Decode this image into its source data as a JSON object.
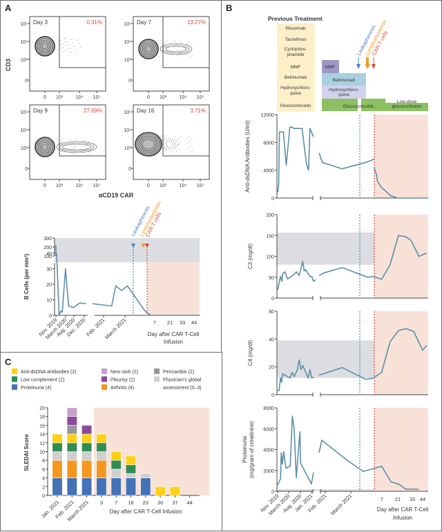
{
  "colors": {
    "line": "#5b8ea8",
    "normal_range": "#dcdde2",
    "post_infusion": "#f8e2d8",
    "leukapheresis": "#4a7cc7",
    "lymphodepletion": "#f39c2b",
    "car_t": "#d9453a",
    "pct_text": "#d9453a",
    "prev_treatment_bg": "#fdefc8",
    "mmf": "#9e98c6",
    "belimumab": "#a9cfe0",
    "hcq": "#d3d3ee",
    "glucocorticoids": "#8cc063"
  },
  "panels": {
    "a": {
      "label": "A"
    },
    "b": {
      "label": "B"
    },
    "c": {
      "label": "C"
    }
  },
  "events": {
    "leukapheresis": "Leukapheresis",
    "lymphodepletion": "Lymphodepletion",
    "car_t": "CAR T cells"
  },
  "chart_data": [
    {
      "id": "flow-cytometry",
      "type": "scatter",
      "xlabel": "αCD19 CAR",
      "ylabel": "CD3",
      "x_ticks": [
        "0",
        "10³",
        "10⁴",
        "10⁵"
      ],
      "y_ticks": [
        "0",
        "10³",
        "10⁴",
        "10⁵"
      ],
      "plots": [
        {
          "title": "Day 3",
          "percent": "0.31%"
        },
        {
          "title": "Day 7",
          "percent": "13.27%"
        },
        {
          "title": "Day 9",
          "percent": "27.69%"
        },
        {
          "title": "Day 16",
          "percent": "3.71%"
        }
      ]
    },
    {
      "id": "b-cells",
      "type": "line",
      "ylabel": "B Cells (per mm³)",
      "xlabel": "Day after CAR T-Cell Infusion",
      "upper_ticks": [
        "100",
        "200",
        "300"
      ],
      "lower_ticks": [
        "0",
        "10",
        "20",
        "30",
        "40"
      ],
      "x_ticks_dates": [
        "Nov. 2019",
        "March 2020",
        "Aug. 2020",
        "Dec. 2020",
        "Feb. 2021",
        "March 2021"
      ],
      "x_ticks_days": [
        "7",
        "21",
        "33",
        "44"
      ],
      "segment1": [
        [
          0,
          220
        ],
        [
          0.02,
          40
        ],
        [
          0.1,
          0
        ],
        [
          0.16,
          3
        ],
        [
          0.2,
          2
        ],
        [
          0.3,
          30
        ],
        [
          0.4,
          6
        ],
        [
          0.55,
          5
        ],
        [
          0.75,
          8
        ],
        [
          0.95,
          7.5
        ]
      ],
      "segment2": [
        [
          0,
          7.5
        ],
        [
          0.33,
          6
        ],
        [
          0.4,
          19
        ],
        [
          0.5,
          16
        ],
        [
          0.6,
          19
        ],
        [
          0.9,
          3
        ],
        [
          1.0,
          0
        ]
      ],
      "segment3": [
        [
          0,
          0
        ],
        [
          0.1,
          0
        ],
        [
          1,
          0
        ]
      ],
      "normal_range": [
        100,
        300
      ]
    },
    {
      "id": "anti-dsdna",
      "type": "line",
      "ylabel": "Anti-dsDNA Antibodies (U/ml)",
      "y_ticks": [
        "0",
        "4000",
        "8000",
        "12000"
      ],
      "ylim": [
        0,
        12000
      ],
      "segment1": [
        [
          0,
          800
        ],
        [
          0.03,
          2000
        ],
        [
          0.05,
          9500
        ],
        [
          0.16,
          9500
        ],
        [
          0.24,
          4700
        ],
        [
          0.34,
          10200
        ],
        [
          0.4,
          10200
        ],
        [
          0.46,
          10000
        ],
        [
          0.68,
          10000
        ],
        [
          0.8,
          5000
        ],
        [
          0.86,
          4000
        ],
        [
          0.9,
          10000
        ],
        [
          1.0,
          8800
        ]
      ],
      "segment2": [
        [
          0,
          6500
        ],
        [
          0.06,
          5100
        ],
        [
          0.42,
          4200
        ],
        [
          0.88,
          5200
        ],
        [
          1.0,
          5600
        ]
      ],
      "segment3": [
        [
          0,
          4300
        ],
        [
          0.04,
          3400
        ],
        [
          0.06,
          2400
        ],
        [
          0.14,
          1500
        ],
        [
          0.32,
          300
        ],
        [
          0.45,
          0
        ],
        [
          1,
          0
        ]
      ]
    },
    {
      "id": "c3",
      "type": "line",
      "ylabel": "C3 (mg/dl)",
      "y_ticks": [
        "0",
        "50",
        "100",
        "150",
        "200"
      ],
      "ylim": [
        0,
        200
      ],
      "normal_range": [
        80,
        157
      ],
      "segment1": [
        [
          0,
          20
        ],
        [
          0.08,
          52
        ],
        [
          0.12,
          40
        ],
        [
          0.14,
          58
        ],
        [
          0.2,
          63
        ],
        [
          0.28,
          46
        ],
        [
          0.45,
          56
        ],
        [
          0.52,
          63
        ],
        [
          0.6,
          54
        ],
        [
          0.7,
          88
        ],
        [
          0.74,
          65
        ],
        [
          0.78,
          68
        ],
        [
          0.9,
          52
        ],
        [
          0.95,
          52
        ],
        [
          1.0,
          40
        ],
        [
          1.05,
          44
        ]
      ],
      "segment2": [
        [
          0,
          54
        ],
        [
          0.08,
          60
        ],
        [
          0.42,
          73
        ],
        [
          0.88,
          50
        ],
        [
          1.0,
          52
        ]
      ],
      "segment3": [
        [
          0,
          51
        ],
        [
          0.14,
          45
        ],
        [
          0.3,
          80
        ],
        [
          0.46,
          150
        ],
        [
          0.6,
          147
        ],
        [
          0.7,
          138
        ],
        [
          0.85,
          100
        ],
        [
          1.0,
          108
        ]
      ]
    },
    {
      "id": "c4",
      "type": "line",
      "ylabel": "C4 (mg/dl)",
      "y_ticks": [
        "0",
        "20",
        "40",
        "60"
      ],
      "ylim": [
        0,
        60
      ],
      "normal_range": [
        12,
        39
      ],
      "segment1": [
        [
          0,
          3
        ],
        [
          0.04,
          3
        ],
        [
          0.08,
          12
        ],
        [
          0.11,
          9
        ],
        [
          0.14,
          15
        ],
        [
          0.35,
          12
        ],
        [
          0.4,
          16
        ],
        [
          0.46,
          13
        ],
        [
          0.55,
          18
        ],
        [
          0.6,
          25
        ],
        [
          0.65,
          18
        ],
        [
          0.7,
          21
        ],
        [
          0.8,
          15
        ],
        [
          0.85,
          12
        ],
        [
          0.9,
          18
        ],
        [
          0.95,
          12
        ],
        [
          1.0,
          12.5
        ]
      ],
      "segment2": [
        [
          0,
          14
        ],
        [
          0.42,
          19.5
        ],
        [
          0.85,
          11
        ],
        [
          1.0,
          12
        ]
      ],
      "segment3": [
        [
          0,
          12.5
        ],
        [
          0.14,
          16
        ],
        [
          0.3,
          38
        ],
        [
          0.46,
          46
        ],
        [
          0.6,
          47.5
        ],
        [
          0.75,
          45.5
        ],
        [
          0.92,
          32
        ],
        [
          1.0,
          35.5
        ]
      ]
    },
    {
      "id": "proteinuria",
      "type": "line",
      "ylabel": "Proteinuria (mg/gram of creatinine)",
      "y_ticks": [
        "0",
        "2000",
        "4000",
        "6000",
        "8000"
      ],
      "ylim": [
        0,
        8000
      ],
      "normal_range": [
        0,
        200
      ],
      "x_ticks_dates": [
        "Nov. 2019",
        "March 2020",
        "Aug. 2020",
        "Jan. 2021",
        "Feb. 2021",
        "March 2021"
      ],
      "x_ticks_days": [
        "7",
        "21",
        "33",
        "44"
      ],
      "xlabel": "Day after CAR T-Cell Infusion",
      "segment1": [
        [
          0,
          600
        ],
        [
          0.08,
          1200
        ],
        [
          0.1,
          3700
        ],
        [
          0.13,
          2600
        ],
        [
          0.17,
          3800
        ],
        [
          0.23,
          2200
        ],
        [
          0.35,
          2400
        ],
        [
          0.41,
          7200
        ],
        [
          0.46,
          6000
        ],
        [
          0.52,
          1300
        ],
        [
          0.62,
          5700
        ],
        [
          0.64,
          2700
        ],
        [
          0.94,
          700
        ],
        [
          1.0,
          1800
        ]
      ],
      "segment2": [
        [
          0,
          3700
        ],
        [
          0.05,
          4900
        ],
        [
          0.5,
          3000
        ],
        [
          0.8,
          1900
        ],
        [
          1.0,
          2200
        ]
      ],
      "segment3": [
        [
          0,
          2200
        ],
        [
          0.14,
          2400
        ],
        [
          0.32,
          900
        ],
        [
          0.46,
          700
        ],
        [
          0.6,
          200
        ],
        [
          0.8,
          200
        ],
        [
          0.85,
          150
        ]
      ]
    },
    {
      "id": "sledai",
      "type": "bar",
      "ylabel": "SLEDAI Score",
      "xlabel": "Day after CAR T-Cell Infusion",
      "ylim": [
        0,
        20
      ],
      "y_ticks": [
        "0",
        "2",
        "4",
        "6",
        "8",
        "10",
        "12",
        "14",
        "16",
        "18",
        "20"
      ],
      "categories": [
        "Jan. 2021",
        "Feb. 2021",
        "March 2021",
        "3",
        "7",
        "16",
        "23",
        "30",
        "37",
        "44"
      ],
      "series": [
        {
          "name": "Proteinuria (4)",
          "color": "#4472b8",
          "values": [
            4,
            4,
            4,
            4,
            4,
            4,
            4,
            0,
            0,
            0
          ]
        },
        {
          "name": "Arthritis (4)",
          "color": "#f5971f",
          "values": [
            4,
            4,
            4,
            4,
            0,
            0,
            0,
            0,
            0,
            0
          ]
        },
        {
          "name": "Physician's global assessment (0–3)",
          "color": "#cfcfcf",
          "values": [
            2,
            2,
            2,
            2,
            2,
            1,
            1,
            0,
            0,
            0
          ]
        },
        {
          "name": "Low complement (2)",
          "color": "#2f8c55",
          "values": [
            2,
            2,
            2,
            2,
            2,
            2,
            0,
            0,
            0,
            0
          ]
        },
        {
          "name": "Anti-dsDNA antibodies (2)",
          "color": "#fcd116",
          "values": [
            2,
            2,
            2,
            2,
            2,
            2,
            0,
            2,
            2,
            0
          ]
        },
        {
          "name": "Pericarditis (2)",
          "color": "#95979b",
          "values": [
            0,
            2,
            0,
            0,
            0,
            0,
            0,
            0,
            0,
            0
          ]
        },
        {
          "name": "Pleurisy (2)",
          "color": "#8b4a9c",
          "values": [
            0,
            2,
            2,
            0,
            0,
            0,
            0,
            0,
            0,
            0
          ]
        },
        {
          "name": "New rash (2)",
          "color": "#c79fcb",
          "values": [
            0,
            2,
            0,
            0,
            0,
            0,
            0,
            0,
            0,
            0
          ]
        }
      ],
      "legend": [
        [
          "Anti-dsDNA antibodies (2)",
          "#fcd116"
        ],
        [
          "Low complement (2)",
          "#2f8c55"
        ],
        [
          "Proteinuria (4)",
          "#4472b8"
        ],
        [
          "New rash (2)",
          "#c79fcb"
        ],
        [
          "Pleurisy (2)",
          "#8b4a9c"
        ],
        [
          "Arthritis (4)",
          "#f5971f"
        ],
        [
          "Pericarditis (2)",
          "#95979b"
        ],
        [
          "Physician's global",
          "#cfcfcf"
        ],
        [
          "assessment (0–3)",
          ""
        ]
      ]
    }
  ],
  "treatment": {
    "title": "Previous Treatment",
    "previous": [
      "Rituximab",
      "Tacrolimus",
      "Cyclophos-|phamide",
      "MMF",
      "Belimumab",
      "Hydroxychloro-|quine",
      "Glucocorticoids"
    ],
    "current": {
      "mmf": "MMF",
      "belimumab": "Belimumab",
      "hcq": "Hydroxychloro-|quine",
      "gluco": "Glucocorticoids",
      "lowdose": "Low-dose|glucocorticoids"
    }
  }
}
